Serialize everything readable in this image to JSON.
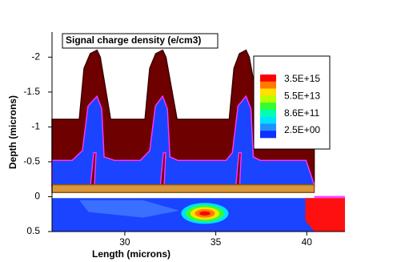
{
  "chart_data": {
    "type": "contour",
    "title": "Signal charge density (e/cm3)",
    "x_label": "Length (microns)",
    "y_label": "Depth (microns)",
    "xlim": [
      26,
      42.1
    ],
    "xticks": [
      30,
      35,
      40
    ],
    "ylim": [
      -2.36,
      0.5
    ],
    "y_inverted": true,
    "yticks": [
      -2,
      -1.5,
      -1,
      -0.5,
      0,
      0.5
    ],
    "legend_position": "upper right",
    "colormap": [
      "#ff0000",
      "#ff7a00",
      "#ffe000",
      "#b8ff00",
      "#30ff30",
      "#00ffb0",
      "#00e0ff",
      "#2090ff",
      "#1030ff"
    ],
    "levels": [
      {
        "value": 3500000000000000.0,
        "label": "3.5E+15"
      },
      {
        "value": 55000000000000.0,
        "label": "5.5E+13"
      },
      {
        "value": 860000000000.0,
        "label": "8.6E+11"
      },
      {
        "value": 2.5,
        "label": "2.5E+00"
      }
    ],
    "regions": [
      {
        "color": "#6e0000",
        "stroke": "#3a0000",
        "points": [
          [
            26,
            -1.11
          ],
          [
            27.5,
            -1.11
          ],
          [
            27.76,
            -1.84
          ],
          [
            28.1,
            -2.05
          ],
          [
            28.47,
            -2.1
          ],
          [
            28.65,
            -2.0
          ],
          [
            29.22,
            -1.11
          ],
          [
            31.11,
            -1.11
          ],
          [
            31.37,
            -1.84
          ],
          [
            31.7,
            -2.05
          ],
          [
            32.08,
            -2.1
          ],
          [
            32.26,
            -2.0
          ],
          [
            32.87,
            -1.11
          ],
          [
            35.74,
            -1.11
          ],
          [
            36.0,
            -1.84
          ],
          [
            36.3,
            -2.05
          ],
          [
            36.66,
            -2.1
          ],
          [
            36.84,
            -2.0
          ],
          [
            37.45,
            -1.11
          ],
          [
            40.41,
            -1.11
          ],
          [
            40.41,
            -0.15
          ],
          [
            26,
            -0.15
          ]
        ]
      },
      {
        "color": "#1a44ff",
        "stroke": "#ff30ff",
        "points": [
          [
            26,
            -0.52
          ],
          [
            27.1,
            -0.52
          ],
          [
            27.67,
            -0.66
          ],
          [
            27.98,
            -1.3
          ],
          [
            28.47,
            -1.44
          ],
          [
            28.73,
            -1.26
          ],
          [
            28.86,
            -0.57
          ],
          [
            29.44,
            -0.52
          ],
          [
            30.85,
            -0.52
          ],
          [
            31.37,
            -0.66
          ],
          [
            31.68,
            -1.3
          ],
          [
            32.08,
            -1.44
          ],
          [
            32.34,
            -1.26
          ],
          [
            32.48,
            -0.57
          ],
          [
            32.92,
            -0.52
          ],
          [
            35.56,
            -0.52
          ],
          [
            35.91,
            -0.63
          ],
          [
            36.22,
            -1.3
          ],
          [
            36.66,
            -1.44
          ],
          [
            36.93,
            -1.26
          ],
          [
            37.06,
            -0.57
          ],
          [
            37.45,
            -0.52
          ],
          [
            39.96,
            -0.52
          ],
          [
            40.41,
            -0.17
          ],
          [
            40.41,
            -0.15
          ],
          [
            26,
            -0.15
          ]
        ]
      },
      {
        "color": "#6e0000",
        "stroke": "#ff30ff",
        "points": [
          [
            28.11,
            -0.15
          ],
          [
            28.29,
            -0.63
          ],
          [
            28.42,
            -0.63
          ],
          [
            28.33,
            -0.15
          ]
        ]
      },
      {
        "color": "#6e0000",
        "stroke": "#ff30ff",
        "points": [
          [
            31.95,
            -0.15
          ],
          [
            32.12,
            -0.63
          ],
          [
            32.25,
            -0.63
          ],
          [
            32.16,
            -0.15
          ]
        ]
      },
      {
        "color": "#6e0000",
        "stroke": "#ff30ff",
        "points": [
          [
            36.1,
            -0.15
          ],
          [
            36.27,
            -0.63
          ],
          [
            36.4,
            -0.63
          ],
          [
            36.31,
            -0.15
          ]
        ]
      },
      {
        "color": "#d9963a",
        "stroke": "#8a5a10",
        "points": [
          [
            26,
            -0.17
          ],
          [
            40.41,
            -0.17
          ],
          [
            40.41,
            -0.06
          ],
          [
            26,
            -0.06
          ]
        ]
      },
      {
        "color": "#1a44ff",
        "points": [
          [
            26,
            0.02
          ],
          [
            42.1,
            0.02
          ],
          [
            42.1,
            0.5
          ],
          [
            26,
            0.5
          ]
        ]
      },
      {
        "color": "#3a70ff",
        "points": [
          [
            27.5,
            0.05
          ],
          [
            31,
            0.05
          ],
          [
            33,
            0.2
          ],
          [
            31,
            0.3
          ],
          [
            28,
            0.22
          ]
        ]
      },
      {
        "color": "#ff1010",
        "points": [
          [
            39.92,
            0.02
          ],
          [
            42.1,
            0.02
          ],
          [
            42.1,
            0.5
          ],
          [
            40.41,
            0.5
          ],
          [
            39.92,
            0.34
          ]
        ]
      },
      {
        "color": "#ff40ff",
        "points": [
          [
            40.41,
            -0.01
          ],
          [
            42.1,
            -0.01
          ],
          [
            42.1,
            0.02
          ],
          [
            40.41,
            0.02
          ]
        ]
      }
    ],
    "spots": [
      {
        "color": "#00e0ff",
        "cx": 34.4,
        "cy": 0.24,
        "rx": 1.3,
        "ry": 0.15
      },
      {
        "color": "#30ff30",
        "cx": 34.4,
        "cy": 0.24,
        "rx": 1.05,
        "ry": 0.12
      },
      {
        "color": "#ffe000",
        "cx": 34.4,
        "cy": 0.24,
        "rx": 0.8,
        "ry": 0.09
      },
      {
        "color": "#ff7a00",
        "cx": 34.4,
        "cy": 0.24,
        "rx": 0.55,
        "ry": 0.06
      },
      {
        "color": "#ff0000",
        "cx": 34.4,
        "cy": 0.24,
        "rx": 0.3,
        "ry": 0.03
      }
    ]
  }
}
